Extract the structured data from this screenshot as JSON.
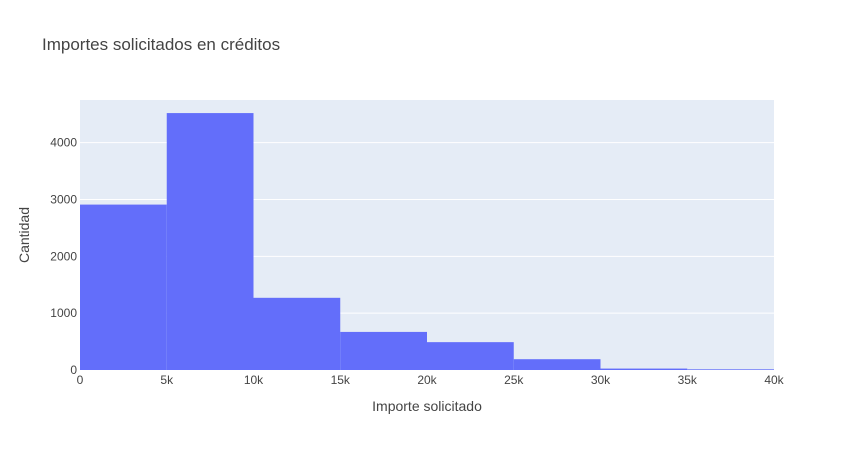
{
  "chart_data": {
    "type": "bar",
    "title": "Importes solicitados en créditos",
    "xlabel": "Importe solicitado",
    "ylabel": "Cantidad",
    "bin_edges": [
      0,
      5000,
      10000,
      15000,
      20000,
      25000,
      30000,
      35000,
      40000
    ],
    "values": [
      2910,
      4520,
      1270,
      670,
      490,
      190,
      25,
      12
    ],
    "x_ticks": [
      {
        "value": 0,
        "label": "0"
      },
      {
        "value": 5000,
        "label": "5k"
      },
      {
        "value": 10000,
        "label": "10k"
      },
      {
        "value": 15000,
        "label": "15k"
      },
      {
        "value": 20000,
        "label": "20k"
      },
      {
        "value": 25000,
        "label": "25k"
      },
      {
        "value": 30000,
        "label": "30k"
      },
      {
        "value": 35000,
        "label": "35k"
      },
      {
        "value": 40000,
        "label": "40k"
      }
    ],
    "y_ticks": [
      {
        "value": 0,
        "label": "0"
      },
      {
        "value": 1000,
        "label": "1000"
      },
      {
        "value": 2000,
        "label": "2000"
      },
      {
        "value": 3000,
        "label": "3000"
      },
      {
        "value": 4000,
        "label": "4000"
      }
    ],
    "xlim": [
      0,
      40000
    ],
    "ylim": [
      0,
      4750
    ],
    "grid": true,
    "colors": {
      "bar": "#636efa",
      "plot_bg": "#e5ecf6",
      "grid": "#ffffff",
      "text": "#444444"
    }
  }
}
